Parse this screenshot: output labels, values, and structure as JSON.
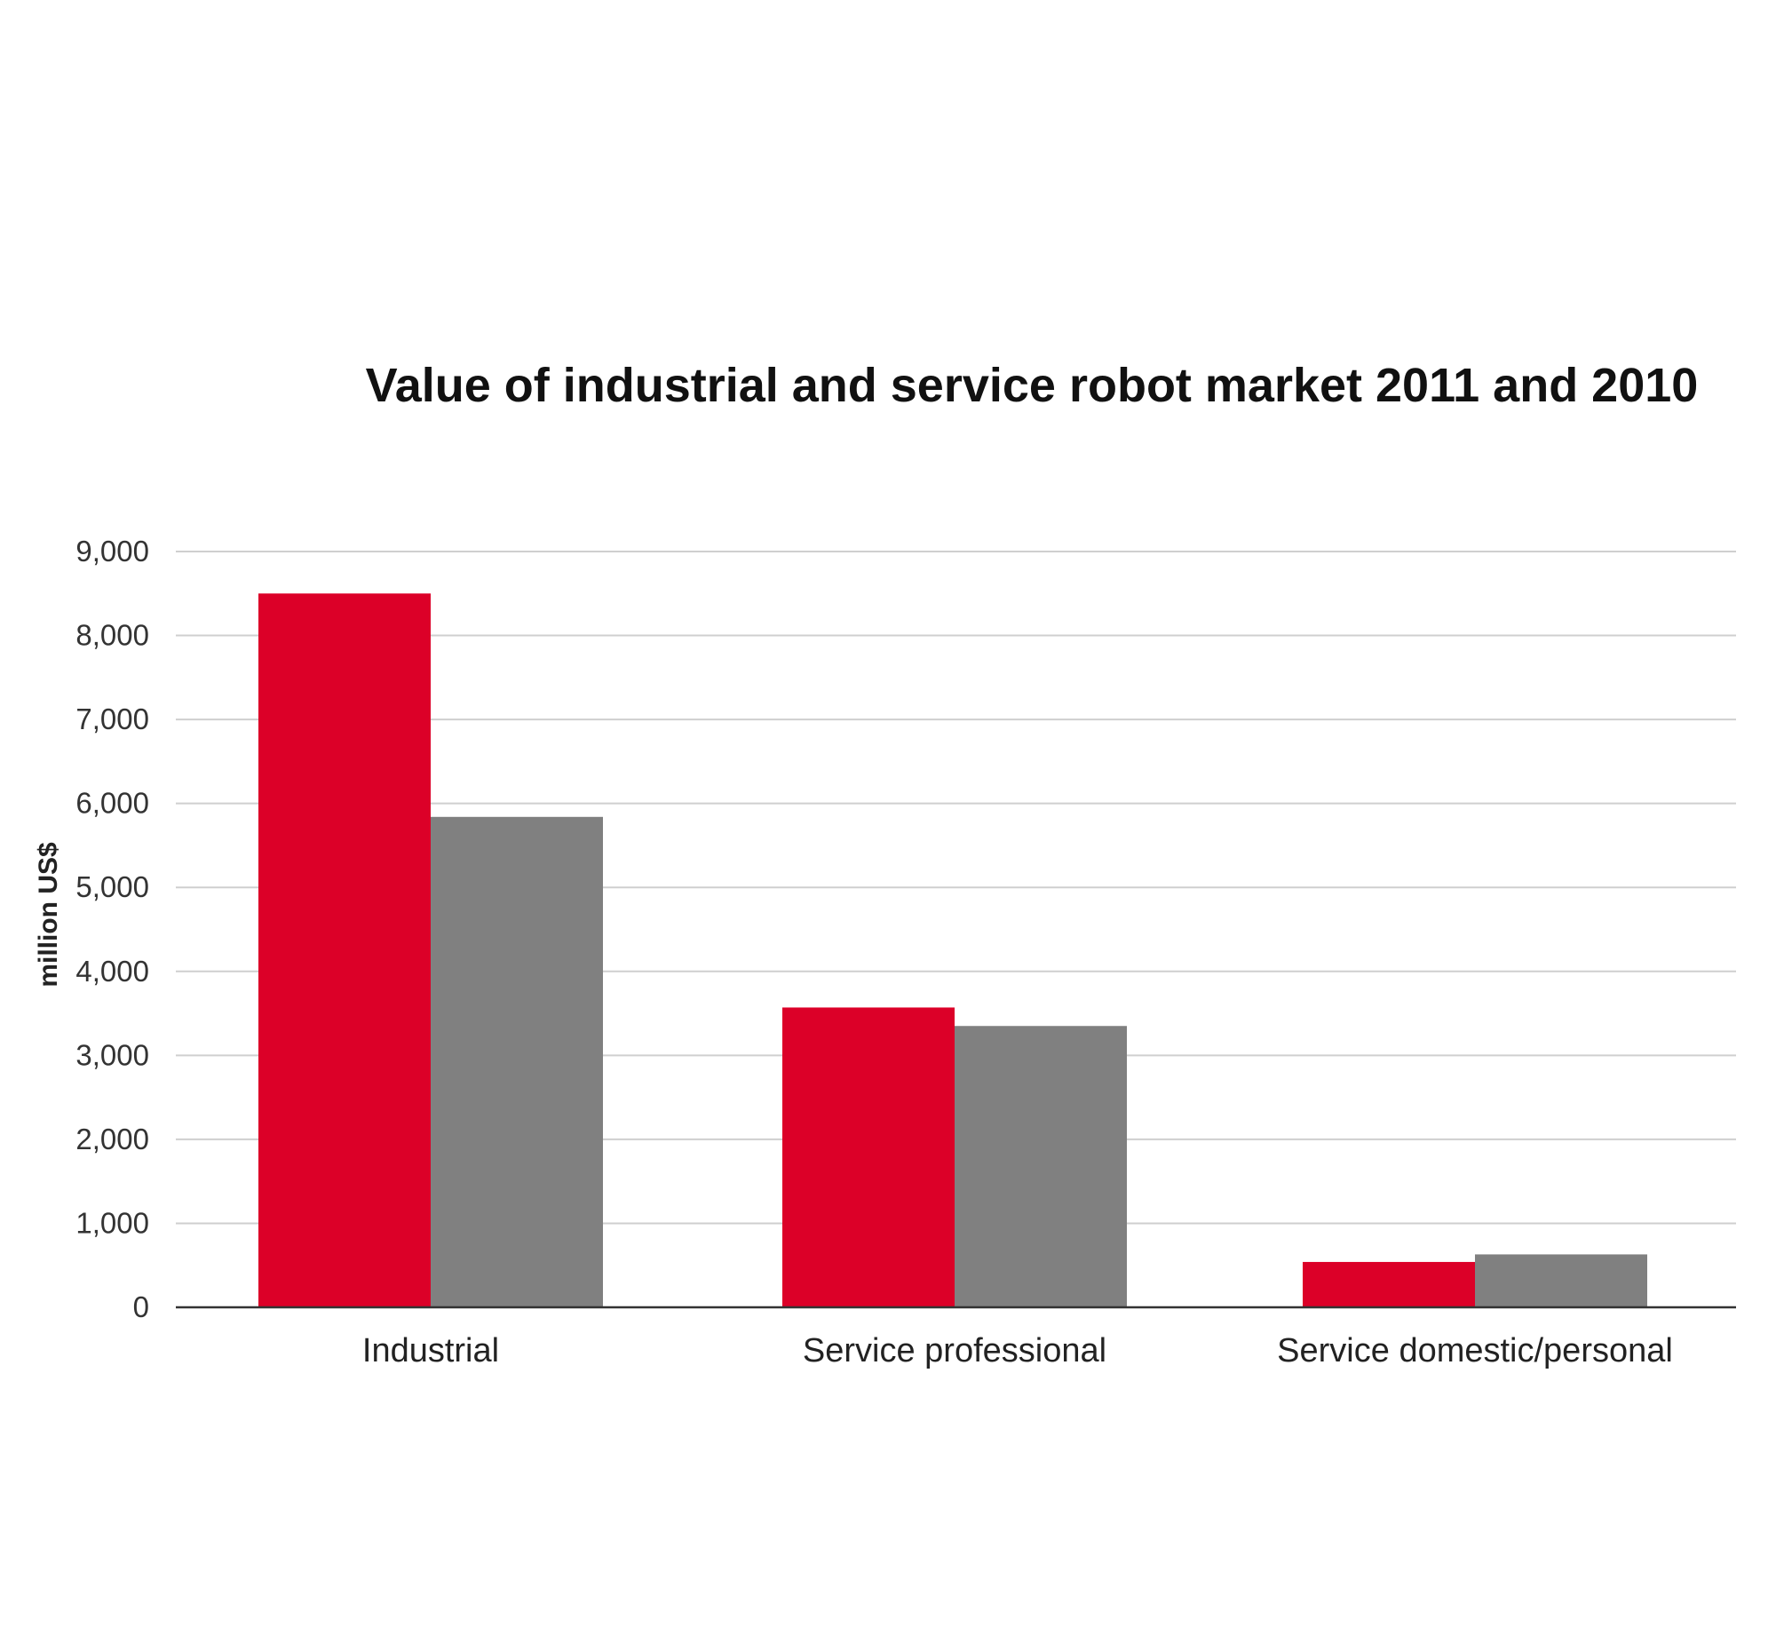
{
  "chart_data": {
    "type": "bar",
    "title": "Value of industrial and service robot market 2011 and 2010",
    "ylabel": "million US$",
    "xlabel": "",
    "ylim": [
      0,
      9000
    ],
    "yticks": [
      "0",
      "1,000",
      "2,000",
      "3,000",
      "4,000",
      "5,000",
      "6,000",
      "7,000",
      "8,000",
      "9,000"
    ],
    "categories": [
      "Industrial",
      "Service professional",
      "Service domestic/personal"
    ],
    "series": [
      {
        "values": [
          8500,
          3570,
          540
        ],
        "color": "#dc0028"
      },
      {
        "values": [
          5840,
          3350,
          630
        ],
        "color": "#808080"
      }
    ],
    "grid": true,
    "legend": "none"
  }
}
